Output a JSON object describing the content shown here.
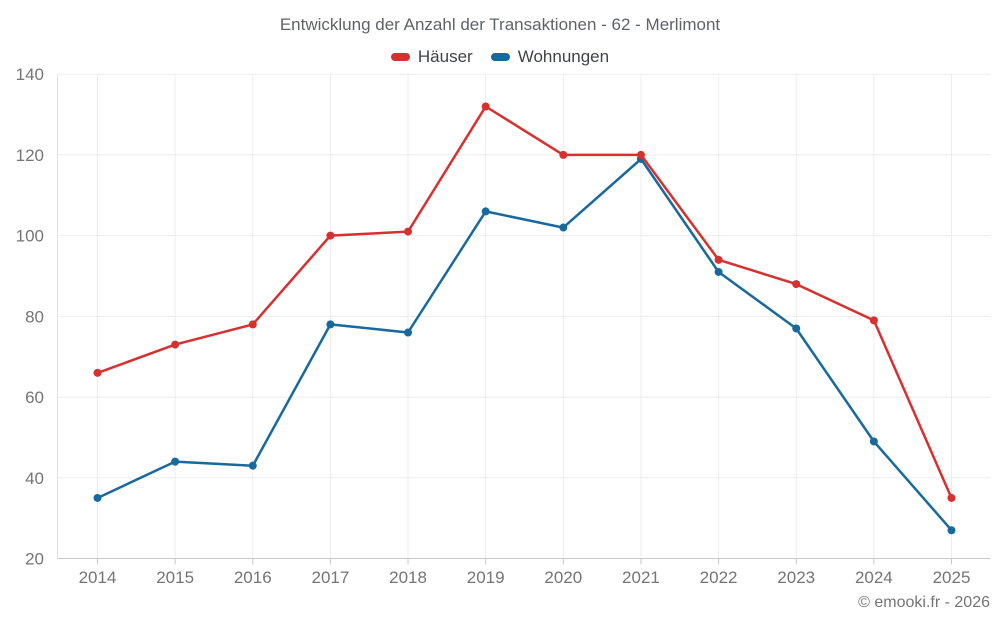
{
  "header": {
    "title": "Entwicklung der Anzahl der Transaktionen - 62 - Merlimont"
  },
  "footer": {
    "credit": "© emooki.fr - 2026"
  },
  "chart_data": {
    "type": "line",
    "title": "Entwicklung der Anzahl der Transaktionen - 62 - Merlimont",
    "categories": [
      "2014",
      "2015",
      "2016",
      "2017",
      "2018",
      "2019",
      "2020",
      "2021",
      "2022",
      "2023",
      "2024",
      "2025"
    ],
    "series": [
      {
        "name": "Häuser",
        "color": "#d7302f",
        "values": [
          66,
          73,
          78,
          100,
          101,
          132,
          120,
          120,
          94,
          88,
          79,
          35
        ]
      },
      {
        "name": "Wohnungen",
        "color": "#17699e",
        "values": [
          35,
          44,
          43,
          78,
          76,
          106,
          102,
          119,
          91,
          77,
          49,
          27
        ]
      }
    ],
    "xlabel": "",
    "ylabel": "",
    "ylim": [
      20,
      140
    ],
    "yticks": [
      20,
      40,
      60,
      80,
      100,
      120,
      140
    ],
    "grid": true,
    "legend_position": "top",
    "grid_color": "#ededed",
    "axis_line_color": "#c9c9c9",
    "axis_label_color": "#757575",
    "point_radius": 4,
    "line_width": 2.5
  }
}
